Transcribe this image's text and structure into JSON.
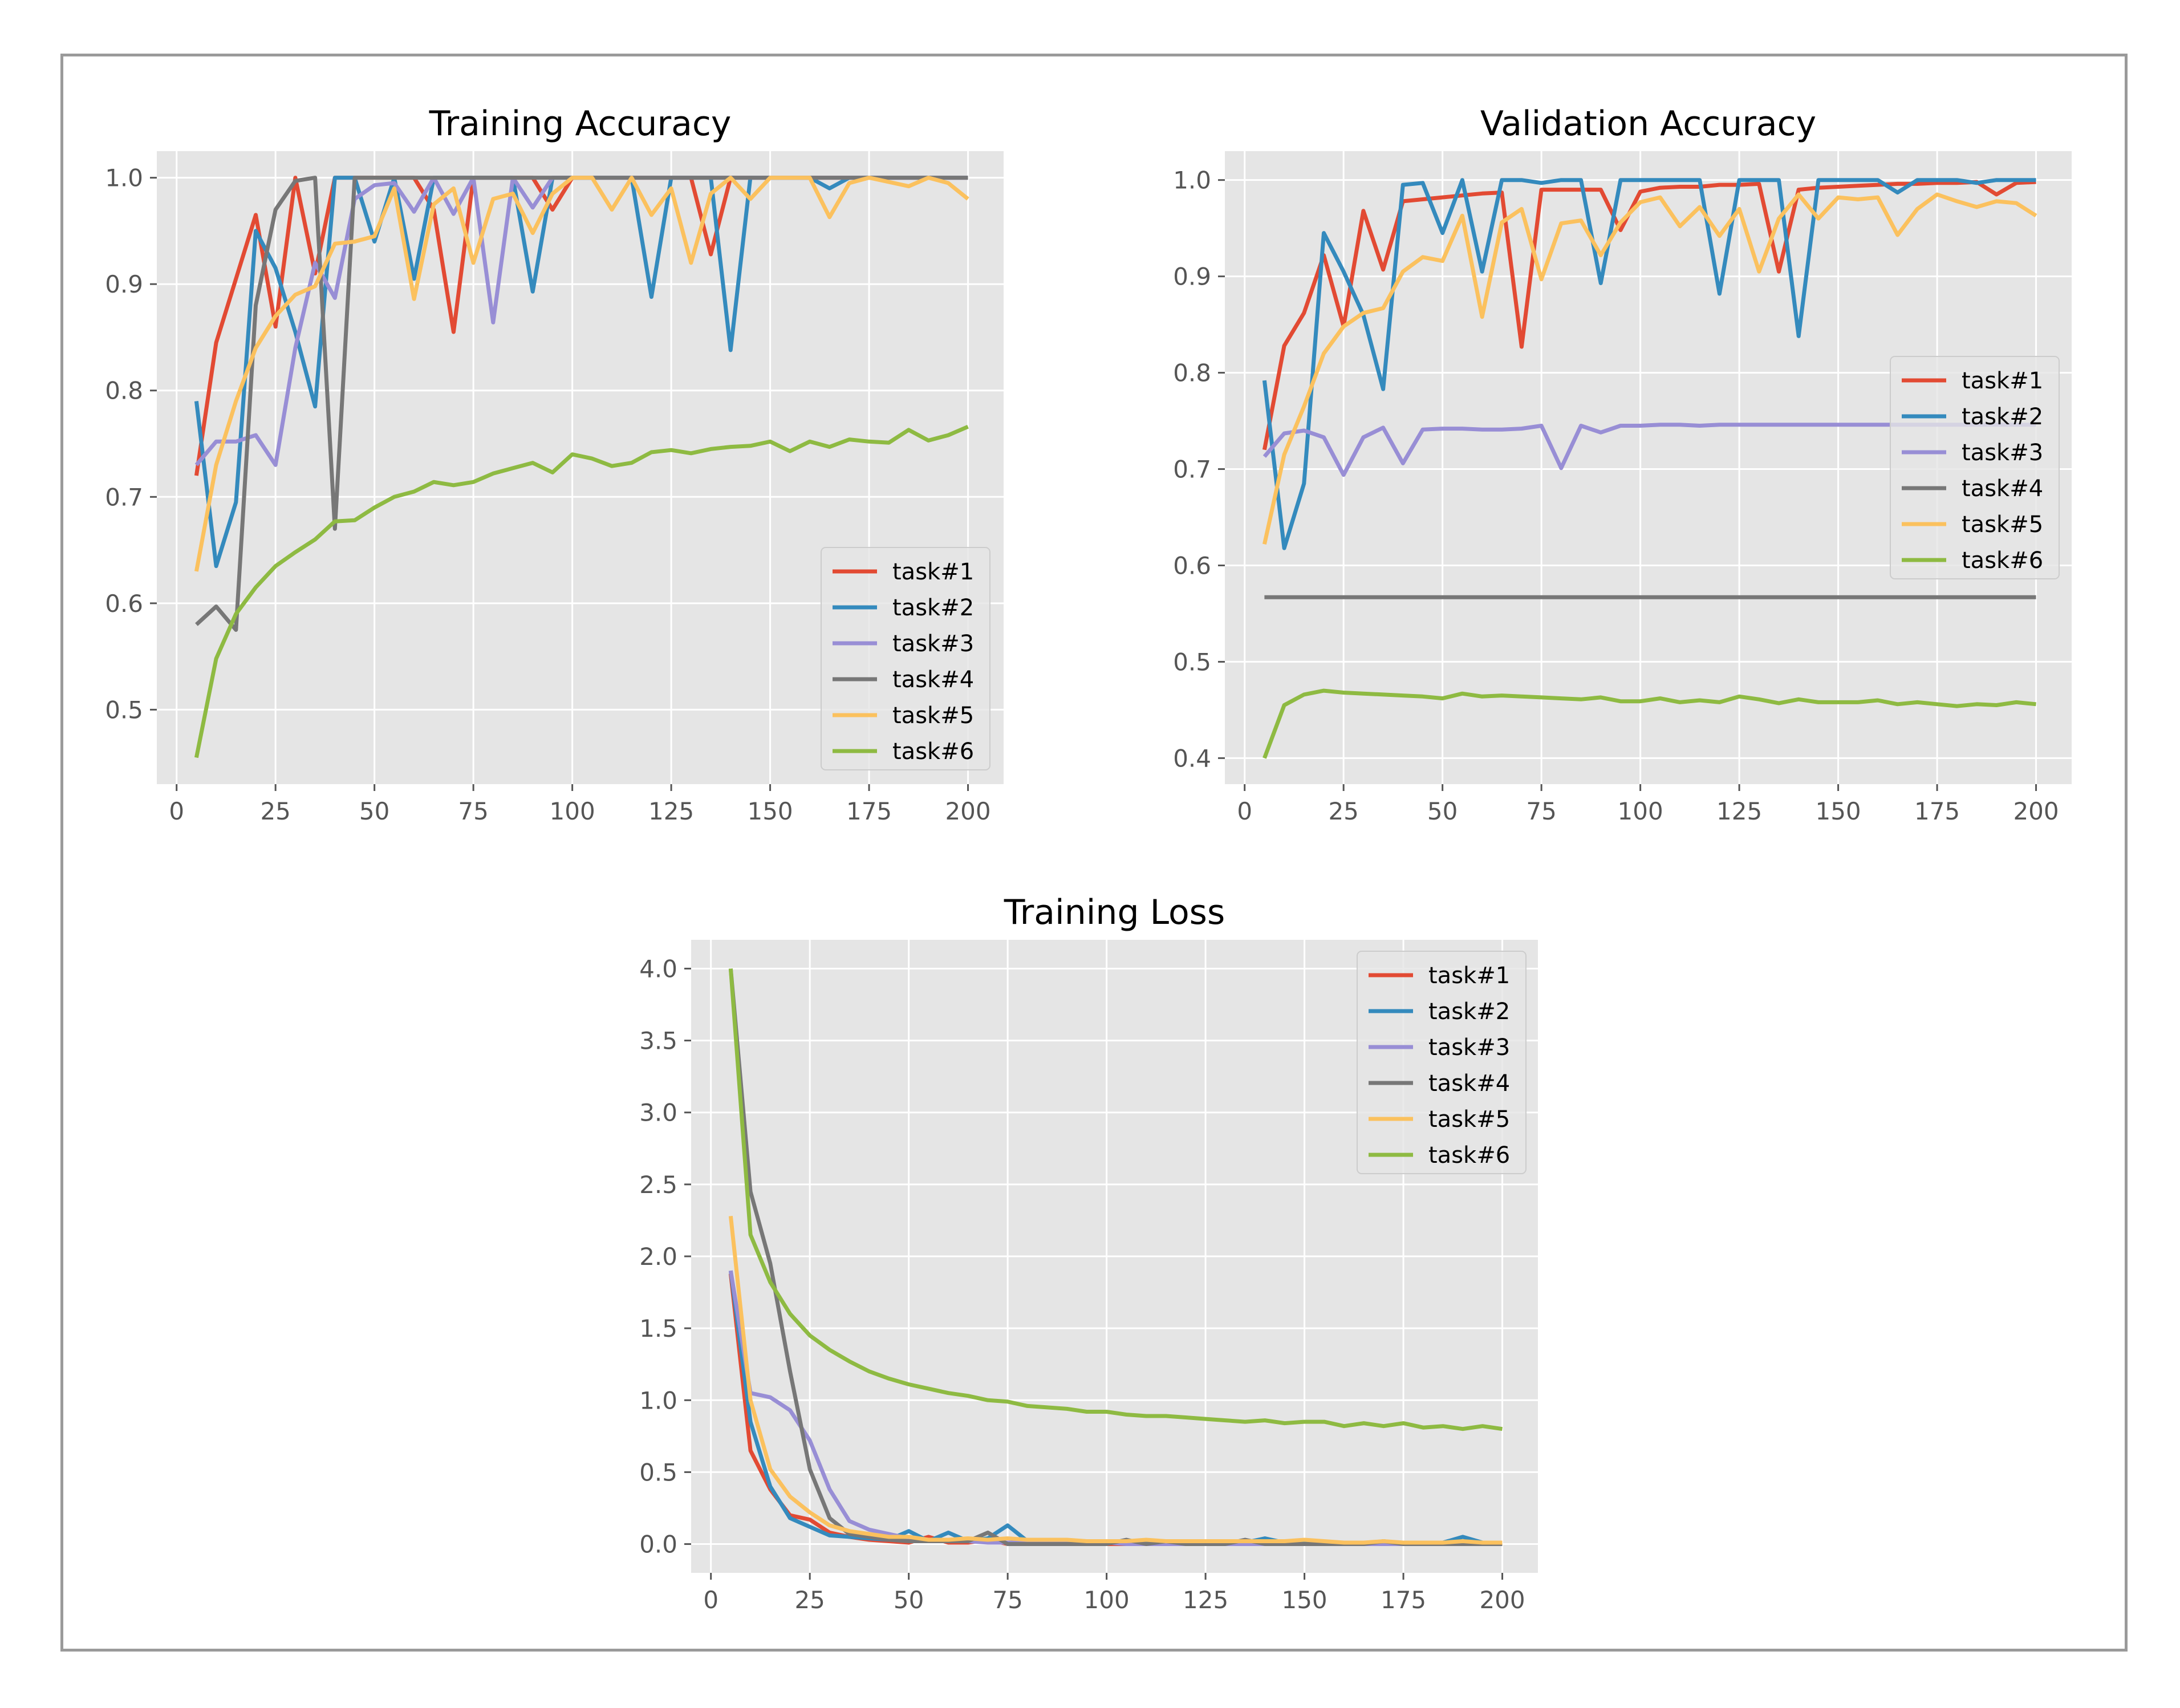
{
  "colors": {
    "background": "#ffffff",
    "plot_background": "#e5e5e5",
    "frame": "#9a9a9a",
    "tick_text": "#555555",
    "series": [
      "#e24a33",
      "#348abd",
      "#988ed5",
      "#777777",
      "#fbc15e",
      "#8eba42"
    ]
  },
  "chart_data": [
    {
      "type": "line",
      "title": "Training Accuracy",
      "xlabel": "",
      "ylabel": "",
      "xlim": [
        -5,
        209
      ],
      "ylim": [
        0.43,
        1.025
      ],
      "xticks": [
        0,
        25,
        50,
        75,
        100,
        125,
        150,
        175,
        200
      ],
      "yticks": [
        0.5,
        0.6,
        0.7,
        0.8,
        0.9,
        1.0
      ],
      "ytick_labels": [
        "0.5",
        "0.6",
        "0.7",
        "0.8",
        "0.9",
        "1.0"
      ],
      "grid": true,
      "legend": "lower-right",
      "x": [
        5,
        10,
        15,
        20,
        25,
        30,
        35,
        40,
        45,
        50,
        55,
        60,
        65,
        70,
        75,
        80,
        85,
        90,
        95,
        100,
        105,
        110,
        115,
        120,
        125,
        130,
        135,
        140,
        145,
        150,
        155,
        160,
        165,
        170,
        175,
        180,
        185,
        190,
        195,
        200
      ],
      "series": [
        {
          "name": "task#1",
          "values": [
            0.72,
            0.845,
            0.905,
            0.965,
            0.86,
            1.0,
            0.91,
            1.0,
            1.0,
            1.0,
            1.0,
            1.0,
            0.97,
            0.855,
            1.0,
            1.0,
            1.0,
            1.0,
            0.97,
            1.0,
            1.0,
            1.0,
            1.0,
            1.0,
            1.0,
            1.0,
            0.928,
            1.0,
            1.0,
            1.0,
            1.0,
            1.0,
            1.0,
            1.0,
            1.0,
            1.0,
            1.0,
            1.0,
            1.0,
            1.0
          ]
        },
        {
          "name": "task#2",
          "values": [
            0.79,
            0.635,
            0.695,
            0.95,
            0.915,
            0.855,
            0.785,
            1.0,
            1.0,
            0.94,
            1.0,
            0.905,
            1.0,
            1.0,
            1.0,
            1.0,
            1.0,
            0.893,
            1.0,
            1.0,
            1.0,
            1.0,
            1.0,
            0.888,
            1.0,
            1.0,
            1.0,
            0.838,
            1.0,
            1.0,
            1.0,
            1.0,
            0.99,
            1.0,
            1.0,
            1.0,
            1.0,
            1.0,
            1.0,
            1.0
          ]
        },
        {
          "name": "task#3",
          "values": [
            0.73,
            0.752,
            0.752,
            0.758,
            0.73,
            0.84,
            0.92,
            0.887,
            0.98,
            0.993,
            0.995,
            0.968,
            1.0,
            0.966,
            1.0,
            0.864,
            1.0,
            0.972,
            1.0,
            1.0,
            1.0,
            1.0,
            1.0,
            1.0,
            1.0,
            1.0,
            1.0,
            1.0,
            1.0,
            1.0,
            1.0,
            1.0,
            1.0,
            1.0,
            1.0,
            1.0,
            1.0,
            1.0,
            1.0,
            1.0
          ]
        },
        {
          "name": "task#4",
          "values": [
            0.58,
            0.597,
            0.575,
            0.88,
            0.97,
            0.997,
            1.0,
            0.67,
            1.0,
            1.0,
            1.0,
            1.0,
            1.0,
            1.0,
            1.0,
            1.0,
            1.0,
            1.0,
            1.0,
            1.0,
            1.0,
            1.0,
            1.0,
            1.0,
            1.0,
            1.0,
            1.0,
            1.0,
            1.0,
            1.0,
            1.0,
            1.0,
            1.0,
            1.0,
            1.0,
            1.0,
            1.0,
            1.0,
            1.0,
            1.0
          ]
        },
        {
          "name": "task#5",
          "values": [
            0.63,
            0.73,
            0.79,
            0.84,
            0.87,
            0.89,
            0.898,
            0.938,
            0.94,
            0.945,
            0.99,
            0.886,
            0.975,
            0.99,
            0.92,
            0.98,
            0.985,
            0.948,
            0.985,
            1.0,
            1.0,
            0.97,
            1.0,
            0.965,
            0.99,
            0.92,
            0.985,
            1.0,
            0.98,
            1.0,
            1.0,
            1.0,
            0.963,
            0.995,
            1.0,
            0.996,
            0.992,
            1.0,
            0.995,
            0.98
          ]
        },
        {
          "name": "task#6",
          "values": [
            0.455,
            0.548,
            0.59,
            0.615,
            0.635,
            0.648,
            0.66,
            0.677,
            0.678,
            0.69,
            0.7,
            0.705,
            0.714,
            0.711,
            0.714,
            0.722,
            0.727,
            0.732,
            0.723,
            0.74,
            0.736,
            0.729,
            0.732,
            0.742,
            0.744,
            0.741,
            0.745,
            0.747,
            0.748,
            0.752,
            0.743,
            0.752,
            0.747,
            0.754,
            0.752,
            0.751,
            0.763,
            0.753,
            0.758,
            0.766
          ]
        }
      ]
    },
    {
      "type": "line",
      "title": "Validation Accuracy",
      "xlabel": "",
      "ylabel": "",
      "xlim": [
        -5,
        209
      ],
      "ylim": [
        0.373,
        1.03
      ],
      "xticks": [
        0,
        25,
        50,
        75,
        100,
        125,
        150,
        175,
        200
      ],
      "yticks": [
        0.4,
        0.5,
        0.6,
        0.7,
        0.8,
        0.9,
        1.0
      ],
      "ytick_labels": [
        "0.4",
        "0.5",
        "0.6",
        "0.7",
        "0.8",
        "0.9",
        "1.0"
      ],
      "grid": true,
      "legend": "center-right",
      "x": [
        5,
        10,
        15,
        20,
        25,
        30,
        35,
        40,
        45,
        50,
        55,
        60,
        65,
        70,
        75,
        80,
        85,
        90,
        95,
        100,
        105,
        110,
        115,
        120,
        125,
        130,
        135,
        140,
        145,
        150,
        155,
        160,
        165,
        170,
        175,
        180,
        185,
        190,
        195,
        200
      ],
      "series": [
        {
          "name": "task#1",
          "values": [
            0.72,
            0.828,
            0.862,
            0.922,
            0.848,
            0.968,
            0.907,
            0.978,
            0.98,
            0.982,
            0.984,
            0.986,
            0.987,
            0.827,
            0.99,
            0.99,
            0.99,
            0.99,
            0.948,
            0.988,
            0.992,
            0.993,
            0.993,
            0.995,
            0.995,
            0.996,
            0.905,
            0.99,
            0.992,
            0.993,
            0.994,
            0.995,
            0.996,
            0.996,
            0.997,
            0.997,
            0.998,
            0.985,
            0.997,
            0.998
          ]
        },
        {
          "name": "task#2",
          "values": [
            0.792,
            0.618,
            0.685,
            0.945,
            0.905,
            0.86,
            0.783,
            0.995,
            0.997,
            0.945,
            1.0,
            0.905,
            1.0,
            1.0,
            0.997,
            1.0,
            1.0,
            0.893,
            1.0,
            1.0,
            1.0,
            1.0,
            1.0,
            0.882,
            1.0,
            1.0,
            1.0,
            0.838,
            1.0,
            1.0,
            1.0,
            1.0,
            0.987,
            1.0,
            1.0,
            1.0,
            0.997,
            1.0,
            1.0,
            1.0
          ]
        },
        {
          "name": "task#3",
          "values": [
            0.713,
            0.737,
            0.74,
            0.733,
            0.694,
            0.733,
            0.743,
            0.706,
            0.741,
            0.742,
            0.742,
            0.741,
            0.741,
            0.742,
            0.745,
            0.701,
            0.745,
            0.738,
            0.745,
            0.745,
            0.746,
            0.746,
            0.745,
            0.746,
            0.746,
            0.746,
            0.746,
            0.746,
            0.746,
            0.746,
            0.746,
            0.746,
            0.746,
            0.746,
            0.746,
            0.746,
            0.746,
            0.746,
            0.746,
            0.746
          ]
        },
        {
          "name": "task#4",
          "values": [
            0.567,
            0.567,
            0.567,
            0.567,
            0.567,
            0.567,
            0.567,
            0.567,
            0.567,
            0.567,
            0.567,
            0.567,
            0.567,
            0.567,
            0.567,
            0.567,
            0.567,
            0.567,
            0.567,
            0.567,
            0.567,
            0.567,
            0.567,
            0.567,
            0.567,
            0.567,
            0.567,
            0.567,
            0.567,
            0.567,
            0.567,
            0.567,
            0.567,
            0.567,
            0.567,
            0.567,
            0.567,
            0.567,
            0.567,
            0.567
          ]
        },
        {
          "name": "task#5",
          "values": [
            0.622,
            0.715,
            0.765,
            0.82,
            0.848,
            0.862,
            0.867,
            0.905,
            0.92,
            0.916,
            0.963,
            0.858,
            0.956,
            0.97,
            0.897,
            0.955,
            0.958,
            0.922,
            0.956,
            0.977,
            0.982,
            0.952,
            0.972,
            0.942,
            0.97,
            0.905,
            0.96,
            0.985,
            0.96,
            0.982,
            0.98,
            0.982,
            0.943,
            0.97,
            0.985,
            0.978,
            0.972,
            0.978,
            0.976,
            0.963
          ]
        },
        {
          "name": "task#6",
          "values": [
            0.4,
            0.455,
            0.466,
            0.47,
            0.468,
            0.467,
            0.466,
            0.465,
            0.464,
            0.462,
            0.467,
            0.464,
            0.465,
            0.464,
            0.463,
            0.462,
            0.461,
            0.463,
            0.459,
            0.459,
            0.462,
            0.458,
            0.46,
            0.458,
            0.464,
            0.461,
            0.457,
            0.461,
            0.458,
            0.458,
            0.458,
            0.46,
            0.456,
            0.458,
            0.456,
            0.454,
            0.456,
            0.455,
            0.458,
            0.456
          ]
        }
      ]
    },
    {
      "type": "line",
      "title": "Training Loss",
      "xlabel": "",
      "ylabel": "",
      "xlim": [
        -5,
        209
      ],
      "ylim": [
        -0.2,
        4.2
      ],
      "xticks": [
        0,
        25,
        50,
        75,
        100,
        125,
        150,
        175,
        200
      ],
      "yticks": [
        0.0,
        0.5,
        1.0,
        1.5,
        2.0,
        2.5,
        3.0,
        3.5,
        4.0
      ],
      "ytick_labels": [
        "0.0",
        "0.5",
        "1.0",
        "1.5",
        "2.0",
        "2.5",
        "3.0",
        "3.5",
        "4.0"
      ],
      "grid": true,
      "legend": "upper-right",
      "x": [
        5,
        10,
        15,
        20,
        25,
        30,
        35,
        40,
        45,
        50,
        55,
        60,
        65,
        70,
        75,
        80,
        85,
        90,
        95,
        100,
        105,
        110,
        115,
        120,
        125,
        130,
        135,
        140,
        145,
        150,
        155,
        160,
        165,
        170,
        175,
        180,
        185,
        190,
        195,
        200
      ],
      "series": [
        {
          "name": "task#1",
          "values": [
            1.88,
            0.65,
            0.38,
            0.2,
            0.17,
            0.08,
            0.05,
            0.03,
            0.02,
            0.01,
            0.05,
            0.01,
            0.01,
            0.03,
            0.0,
            0.0,
            0.0,
            0.0,
            0.02,
            0.0,
            0.0,
            0.0,
            0.0,
            0.0,
            0.0,
            0.0,
            0.02,
            0.0,
            0.0,
            0.0,
            0.0,
            0.0,
            0.0,
            0.0,
            0.0,
            0.0,
            0.0,
            0.0,
            0.0,
            0.0
          ]
        },
        {
          "name": "task#2",
          "values": [
            1.9,
            0.85,
            0.4,
            0.18,
            0.12,
            0.06,
            0.05,
            0.04,
            0.03,
            0.09,
            0.02,
            0.08,
            0.02,
            0.04,
            0.13,
            0.02,
            0.02,
            0.02,
            0.02,
            0.01,
            0.01,
            0.01,
            0.01,
            0.02,
            0.01,
            0.01,
            0.01,
            0.04,
            0.01,
            0.01,
            0.01,
            0.01,
            0.01,
            0.01,
            0.01,
            0.01,
            0.01,
            0.05,
            0.01,
            0.01
          ]
        },
        {
          "name": "task#3",
          "values": [
            1.9,
            1.05,
            1.02,
            0.93,
            0.72,
            0.38,
            0.16,
            0.1,
            0.07,
            0.04,
            0.03,
            0.02,
            0.02,
            0.01,
            0.01,
            0.01,
            0.01,
            0.01,
            0.01,
            0.01,
            0.0,
            0.0,
            0.0,
            0.0,
            0.0,
            0.0,
            0.0,
            0.0,
            0.0,
            0.0,
            0.0,
            0.0,
            0.0,
            0.0,
            0.0,
            0.0,
            0.0,
            0.0,
            0.0,
            0.0
          ]
        },
        {
          "name": "task#4",
          "values": [
            4.0,
            2.45,
            1.95,
            1.2,
            0.52,
            0.18,
            0.07,
            0.05,
            0.03,
            0.02,
            0.02,
            0.02,
            0.02,
            0.08,
            0.0,
            0.0,
            0.0,
            0.0,
            0.0,
            0.0,
            0.03,
            0.0,
            0.02,
            0.0,
            0.0,
            0.0,
            0.03,
            0.0,
            0.0,
            0.0,
            0.0,
            0.0,
            0.0,
            0.02,
            0.0,
            0.0,
            0.0,
            0.0,
            0.0,
            0.0
          ]
        },
        {
          "name": "task#5",
          "values": [
            2.28,
            1.0,
            0.52,
            0.33,
            0.22,
            0.13,
            0.09,
            0.07,
            0.05,
            0.05,
            0.03,
            0.03,
            0.04,
            0.03,
            0.04,
            0.03,
            0.03,
            0.03,
            0.02,
            0.02,
            0.02,
            0.03,
            0.02,
            0.02,
            0.02,
            0.02,
            0.02,
            0.02,
            0.02,
            0.03,
            0.02,
            0.01,
            0.01,
            0.02,
            0.01,
            0.01,
            0.01,
            0.02,
            0.01,
            0.01
          ]
        },
        {
          "name": "task#6",
          "values": [
            4.0,
            2.15,
            1.82,
            1.6,
            1.45,
            1.35,
            1.27,
            1.2,
            1.15,
            1.11,
            1.08,
            1.05,
            1.03,
            1.0,
            0.99,
            0.96,
            0.95,
            0.94,
            0.92,
            0.92,
            0.9,
            0.89,
            0.89,
            0.88,
            0.87,
            0.86,
            0.85,
            0.86,
            0.84,
            0.85,
            0.85,
            0.82,
            0.84,
            0.82,
            0.84,
            0.81,
            0.82,
            0.8,
            0.82,
            0.8
          ]
        }
      ]
    }
  ]
}
